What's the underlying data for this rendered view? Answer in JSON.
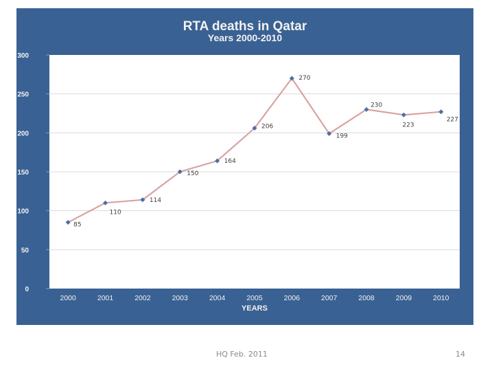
{
  "chart_data": {
    "type": "line",
    "title": "RTA deaths in Qatar",
    "subtitle": "Years 2000-2010",
    "xlabel": "YEARS",
    "ylabel": "",
    "categories": [
      "2000",
      "2001",
      "2002",
      "2003",
      "2004",
      "2005",
      "2006",
      "2007",
      "2008",
      "2009",
      "2010"
    ],
    "series": [
      {
        "name": "RTA deaths",
        "values": [
          85,
          110,
          114,
          150,
          164,
          206,
          270,
          199,
          230,
          223,
          227
        ]
      }
    ],
    "data_labels": [
      "85",
      "110",
      "114",
      "150",
      "164",
      "206",
      "270",
      "199",
      "230",
      "223",
      "227"
    ],
    "ylim": [
      0,
      300
    ],
    "yticks": [
      0,
      50,
      100,
      150,
      200,
      250,
      300
    ],
    "ytick_labels": [
      "0",
      "50",
      "100",
      "150",
      "200",
      "250",
      "300"
    ],
    "grid": true,
    "legend": "none",
    "colors": {
      "background": "#3a6193",
      "plot": "#ffffff",
      "line": "#d9a3a3",
      "marker": "#4a6fa5",
      "grid": "#d9d9d9",
      "axis_text": "#f2f2f2",
      "label_text": "#404040"
    }
  },
  "footer": {
    "left": "HQ Feb. 2011",
    "page_number": "14"
  }
}
